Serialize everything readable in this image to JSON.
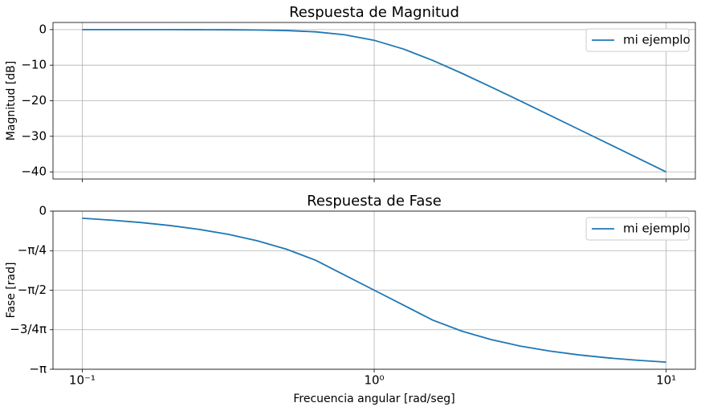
{
  "chart_data": [
    {
      "type": "line",
      "title": "Respuesta de Magnitud",
      "y_label": "Magnitud [dB]",
      "xscale": "log",
      "grid": true,
      "legend": "upper right",
      "x": [
        0.1,
        0.1259,
        0.1585,
        0.1995,
        0.2512,
        0.3162,
        0.3981,
        0.5012,
        0.631,
        0.7943,
        1,
        1.2589,
        1.5849,
        1.9953,
        2.5119,
        3.1623,
        3.9811,
        5.0119,
        6.3096,
        7.9433,
        10
      ],
      "series": [
        {
          "name": "mi ejemplo",
          "color": "#1f77b4",
          "values": [
            0,
            0,
            0,
            -0.01,
            -0.02,
            -0.04,
            -0.11,
            -0.27,
            -0.64,
            -1.46,
            -3.01,
            -5.46,
            -8.64,
            -12.27,
            -16.11,
            -20.04,
            -24.02,
            -28.01,
            -32,
            -36,
            -40
          ]
        }
      ],
      "xlim": [
        0.0794,
        12.59
      ],
      "xticks": [
        0.1,
        1,
        10
      ],
      "ylim": [
        -42,
        2
      ],
      "yticks": [
        0,
        {
          "value": -10,
          "label": "−10"
        },
        {
          "value": -20,
          "label": "−20"
        },
        {
          "value": -30,
          "label": "−30"
        },
        {
          "value": -40,
          "label": "−40"
        }
      ]
    },
    {
      "type": "line",
      "title": "Respuesta de Fase",
      "x_label": "Frecuencia angular [rad/seg]",
      "y_label": "Fase [rad]",
      "xscale": "log",
      "grid": true,
      "legend": "upper right",
      "x": [
        0.1,
        0.1259,
        0.1585,
        0.1995,
        0.2512,
        0.3162,
        0.3981,
        0.5012,
        0.631,
        0.7943,
        1,
        1.2589,
        1.5849,
        1.9953,
        2.5119,
        3.1623,
        3.9811,
        5.0119,
        6.3096,
        7.9433,
        10
      ],
      "series": [
        {
          "name": "mi ejemplo",
          "color": "#1f77b4",
          "values": [
            -0.1419,
            -0.179,
            -0.226,
            -0.2859,
            -0.3628,
            -0.4609,
            -0.5898,
            -0.758,
            -0.9775,
            -1.2748,
            -1.5708,
            -1.8668,
            -2.1641,
            -2.3836,
            -2.5518,
            -2.6807,
            -2.7788,
            -2.8557,
            -2.9156,
            -2.9626,
            -2.9997
          ]
        }
      ],
      "xlim": [
        0.0794,
        12.59
      ],
      "xticks": [
        {
          "value": 0.1,
          "label": "10⁻¹"
        },
        {
          "value": 1,
          "label": "10⁰"
        },
        {
          "value": 10,
          "label": "10¹"
        }
      ],
      "ylim": [
        -3.141593,
        0
      ],
      "yticks": [
        0,
        {
          "value": -0.785398,
          "label": "−π/4"
        },
        {
          "value": -1.570796,
          "label": "−π/2"
        },
        {
          "value": -2.356194,
          "label": "−3/4π"
        },
        {
          "value": -3.141593,
          "label": "−π"
        }
      ]
    }
  ]
}
